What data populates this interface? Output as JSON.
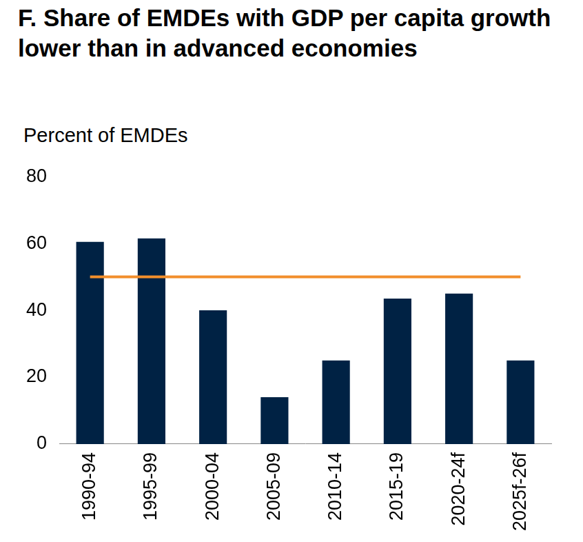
{
  "chart_data": {
    "type": "bar",
    "title": "F. Share of EMDEs with GDP per capita growth lower than in advanced economies",
    "y_label": "Percent of EMDEs",
    "categories": [
      "1990-94",
      "1995-99",
      "2000-04",
      "2005-09",
      "2010-14",
      "2015-19",
      "2020-24f",
      "2025f-26f"
    ],
    "series": [
      {
        "type": "bar",
        "color": "#002244",
        "values": [
          60.5,
          61.5,
          40,
          14,
          25,
          43.5,
          45,
          25
        ]
      },
      {
        "type": "line",
        "color": "#f28e2b",
        "values": [
          50,
          50,
          50,
          50,
          50,
          50,
          50,
          50
        ]
      }
    ],
    "ylim": [
      0,
      80
    ],
    "yticks": [
      0,
      20,
      40,
      60,
      80
    ],
    "grid": false
  }
}
